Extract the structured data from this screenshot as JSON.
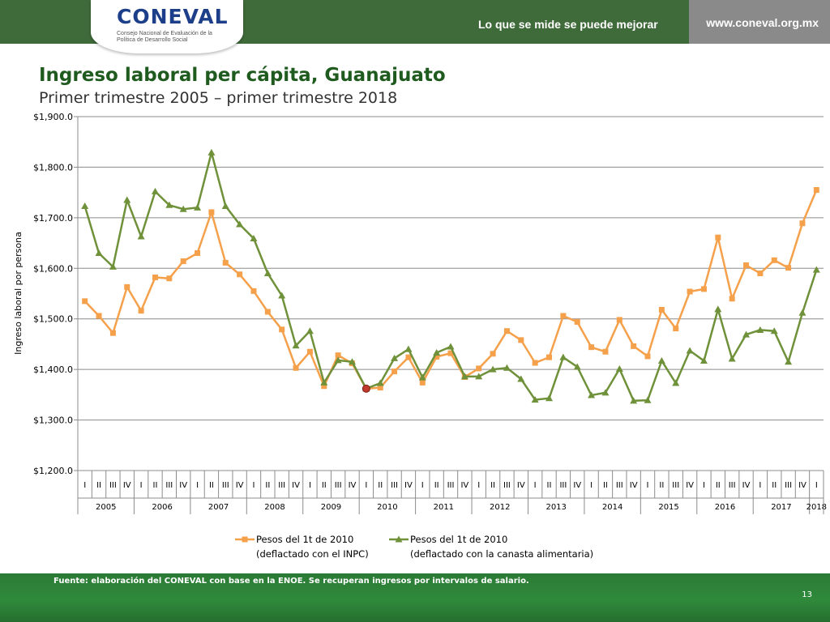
{
  "header": {
    "logo_text": "CONEVAL",
    "logo_subtitle": "Consejo Nacional de Evaluación de la Política de Desarrollo Social",
    "tagline": "Lo que se mide se puede mejorar",
    "website": "www.coneval.org.mx"
  },
  "slide": {
    "title": "Ingreso laboral per cápita, Guanajuato",
    "subtitle": "Primer trimestre 2005 – primer trimestre 2018"
  },
  "footer": {
    "source": "Fuente: elaboración del CONEVAL con base en la ENOE. Se recuperan ingresos por intervalos de salario.",
    "page_number": "13"
  },
  "colors": {
    "header_green": "#3f6a3a",
    "header_gray": "#8a8a8a",
    "series_inpc": "#f5a04a",
    "series_canasta": "#6f913a",
    "highlight_point": "#c0392b"
  },
  "chart_data": {
    "type": "line",
    "title": "",
    "ylabel": "Ingreso laboral por persona",
    "ylim": [
      1200,
      1900
    ],
    "yticks": [
      1200,
      1300,
      1400,
      1500,
      1600,
      1700,
      1800,
      1900
    ],
    "ytick_labels": [
      "$1,200.0",
      "$1,300.0",
      "$1,400.0",
      "$1,500.0",
      "$1,600.0",
      "$1,700.0",
      "$1,800.0",
      "$1,900.0"
    ],
    "grid": true,
    "legend_position": "bottom",
    "quarters": [
      "I",
      "II",
      "III",
      "IV",
      "I",
      "II",
      "III",
      "IV",
      "I",
      "II",
      "III",
      "IV",
      "I",
      "II",
      "III",
      "IV",
      "I",
      "II",
      "III",
      "IV",
      "I",
      "II",
      "III",
      "IV",
      "I",
      "II",
      "III",
      "IV",
      "I",
      "II",
      "III",
      "IV",
      "I",
      "II",
      "III",
      "IV",
      "I",
      "II",
      "III",
      "IV",
      "I",
      "II",
      "III",
      "IV",
      "I",
      "II",
      "III",
      "IV",
      "I",
      "II",
      "III",
      "IV",
      "I"
    ],
    "years": [
      {
        "label": "2005",
        "quarters": 4
      },
      {
        "label": "2006",
        "quarters": 4
      },
      {
        "label": "2007",
        "quarters": 4
      },
      {
        "label": "2008",
        "quarters": 4
      },
      {
        "label": "2009",
        "quarters": 4
      },
      {
        "label": "2010",
        "quarters": 4
      },
      {
        "label": "2011",
        "quarters": 4
      },
      {
        "label": "2012",
        "quarters": 4
      },
      {
        "label": "2013",
        "quarters": 4
      },
      {
        "label": "2014",
        "quarters": 4
      },
      {
        "label": "2015",
        "quarters": 4
      },
      {
        "label": "2016",
        "quarters": 4
      },
      {
        "label": "2017",
        "quarters": 4
      },
      {
        "label": "2018",
        "quarters": 1
      }
    ],
    "highlight_index": 20,
    "series": [
      {
        "name": "Pesos del 1t de 2010",
        "name_line2": "(deflactado con el INPC)",
        "color": "#f5a04a",
        "marker": "square",
        "values": [
          1535,
          1506,
          1472,
          1563,
          1516,
          1582,
          1580,
          1614,
          1630,
          1711,
          1611,
          1588,
          1555,
          1514,
          1479,
          1403,
          1435,
          1367,
          1428,
          1412,
          1362,
          1364,
          1396,
          1424,
          1374,
          1425,
          1432,
          1385,
          1402,
          1431,
          1476,
          1458,
          1413,
          1424,
          1506,
          1494,
          1444,
          1435,
          1498,
          1446,
          1426,
          1518,
          1481,
          1554,
          1559,
          1661,
          1540,
          1606,
          1590,
          1616,
          1601,
          1689,
          1755
        ]
      },
      {
        "name": "Pesos del 1t de 2010",
        "name_line2": "(deflactado con la canasta alimentaria)",
        "color": "#6f913a",
        "marker": "triangle",
        "values": [
          1723,
          1630,
          1603,
          1735,
          1663,
          1752,
          1725,
          1717,
          1720,
          1829,
          1723,
          1687,
          1659,
          1590,
          1546,
          1447,
          1476,
          1374,
          1418,
          1415,
          1362,
          1373,
          1422,
          1440,
          1384,
          1433,
          1445,
          1386,
          1386,
          1400,
          1403,
          1381,
          1340,
          1343,
          1424,
          1405,
          1349,
          1354,
          1401,
          1338,
          1339,
          1417,
          1373,
          1437,
          1417,
          1519,
          1421,
          1469,
          1478,
          1476,
          1415,
          1512,
          1597
        ]
      }
    ]
  }
}
